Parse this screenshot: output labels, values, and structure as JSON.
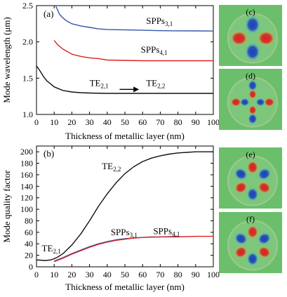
{
  "chart_data": [
    {
      "panel_label": "(a)",
      "type": "line",
      "xlabel": "Thickness of metallic layer (nm)",
      "ylabel": "Mode wavelength (μm)",
      "xlim": [
        0,
        100
      ],
      "ylim": [
        1.0,
        2.5
      ],
      "xticks": [
        0,
        10,
        20,
        30,
        40,
        50,
        60,
        70,
        80,
        90,
        100
      ],
      "yticks": [
        1.0,
        1.5,
        2.0,
        2.5
      ],
      "grid": false,
      "series": [
        {
          "color": "#3355aa",
          "x": [
            11,
            13,
            15,
            17,
            20,
            25,
            30,
            35,
            40,
            50,
            60,
            70,
            80,
            90,
            100
          ],
          "y": [
            2.49,
            2.38,
            2.33,
            2.29,
            2.25,
            2.22,
            2.2,
            2.18,
            2.17,
            2.165,
            2.16,
            2.155,
            2.153,
            2.152,
            2.15
          ]
        },
        {
          "color": "#dd2222",
          "x": [
            10,
            12,
            15,
            18,
            20,
            25,
            30,
            35,
            40,
            50,
            60,
            70,
            80,
            90,
            100
          ],
          "y": [
            2.02,
            1.96,
            1.9,
            1.86,
            1.83,
            1.8,
            1.78,
            1.77,
            1.75,
            1.745,
            1.74,
            1.74,
            1.74,
            1.74,
            1.74
          ]
        },
        {
          "color": "#111111",
          "x": [
            0,
            2,
            4,
            6,
            8,
            10,
            12,
            15,
            20,
            25,
            30,
            40,
            50,
            60,
            70,
            80,
            90,
            100
          ],
          "y": [
            1.67,
            1.6,
            1.52,
            1.46,
            1.42,
            1.38,
            1.36,
            1.33,
            1.31,
            1.3,
            1.295,
            1.29,
            1.29,
            1.29,
            1.29,
            1.29,
            1.29,
            1.29
          ]
        }
      ],
      "annotations": [
        {
          "base": "SPPs",
          "sub": "3,1",
          "x": 62,
          "y": 2.25
        },
        {
          "base": "SPPs",
          "sub": "4,1",
          "x": 59,
          "y": 1.85
        },
        {
          "base": "TE",
          "sub": "2,1",
          "x": 30,
          "y": 1.39
        },
        {
          "base": "TE",
          "sub": "2,2",
          "x": 62,
          "y": 1.39
        }
      ],
      "arrow": {
        "from": [
          47,
          1.345
        ],
        "to": [
          58,
          1.345
        ]
      }
    },
    {
      "panel_label": "(b)",
      "type": "line",
      "xlabel": "Thickness of metallic layer (nm)",
      "ylabel": "Mode quality factor",
      "xlim": [
        0,
        100
      ],
      "ylim": [
        0,
        210
      ],
      "xticks": [
        0,
        10,
        20,
        30,
        40,
        50,
        60,
        70,
        80,
        90,
        100
      ],
      "yticks": [
        0,
        20,
        40,
        60,
        80,
        100,
        120,
        140,
        160,
        180,
        200
      ],
      "grid": false,
      "series": [
        {
          "color": "#111111",
          "x": [
            0,
            5,
            8,
            10,
            12,
            15,
            20,
            25,
            30,
            35,
            40,
            45,
            50,
            55,
            60,
            65,
            70,
            75,
            80,
            85,
            90,
            95,
            100
          ],
          "y": [
            12,
            11,
            12,
            14,
            17,
            23,
            38,
            57,
            80,
            105,
            127,
            146,
            162,
            174,
            183,
            189,
            193,
            196,
            198,
            199,
            200,
            200,
            200
          ]
        },
        {
          "color": "#3355aa",
          "x": [
            10,
            15,
            20,
            25,
            30,
            35,
            40,
            45,
            50,
            55,
            60,
            65,
            70,
            80
          ],
          "y": [
            10,
            16,
            23,
            29,
            35,
            40,
            44,
            47,
            49,
            50,
            51,
            52,
            52,
            53
          ]
        },
        {
          "color": "#dd2222",
          "x": [
            10,
            15,
            20,
            25,
            30,
            35,
            40,
            45,
            50,
            55,
            60,
            70,
            80,
            90,
            100
          ],
          "y": [
            9,
            15,
            22,
            28,
            34,
            39,
            43,
            46,
            48,
            50,
            51,
            52,
            52,
            53,
            53
          ]
        }
      ],
      "annotations": [
        {
          "base": "TE",
          "sub": "2,2",
          "x": 37,
          "y": 170
        },
        {
          "base": "SPPs",
          "sub": "3,1",
          "x": 42,
          "y": 55
        },
        {
          "base": "SPPs",
          "sub": "4,1",
          "x": 66,
          "y": 57
        },
        {
          "base": "TE",
          "sub": "2,1",
          "x": 3,
          "y": 27
        }
      ]
    }
  ],
  "field_panels": [
    {
      "label": "(c)",
      "background": "#6bbf6b",
      "lobes": 4,
      "rings": 1
    },
    {
      "label": "(d)",
      "background": "#6bbf6b",
      "lobes": 4,
      "rings": 2
    },
    {
      "label": "(e)",
      "background": "#6bbf6b",
      "lobes": 6,
      "rings": 1
    },
    {
      "label": "(f)",
      "background": "#6bbf6b",
      "lobes": 6,
      "rings": 1
    }
  ],
  "colors": {
    "axis": "#000000",
    "field_positive": "#dd1f1f",
    "field_negative": "#1c3fbf",
    "field_ring": "#9fc88f"
  }
}
